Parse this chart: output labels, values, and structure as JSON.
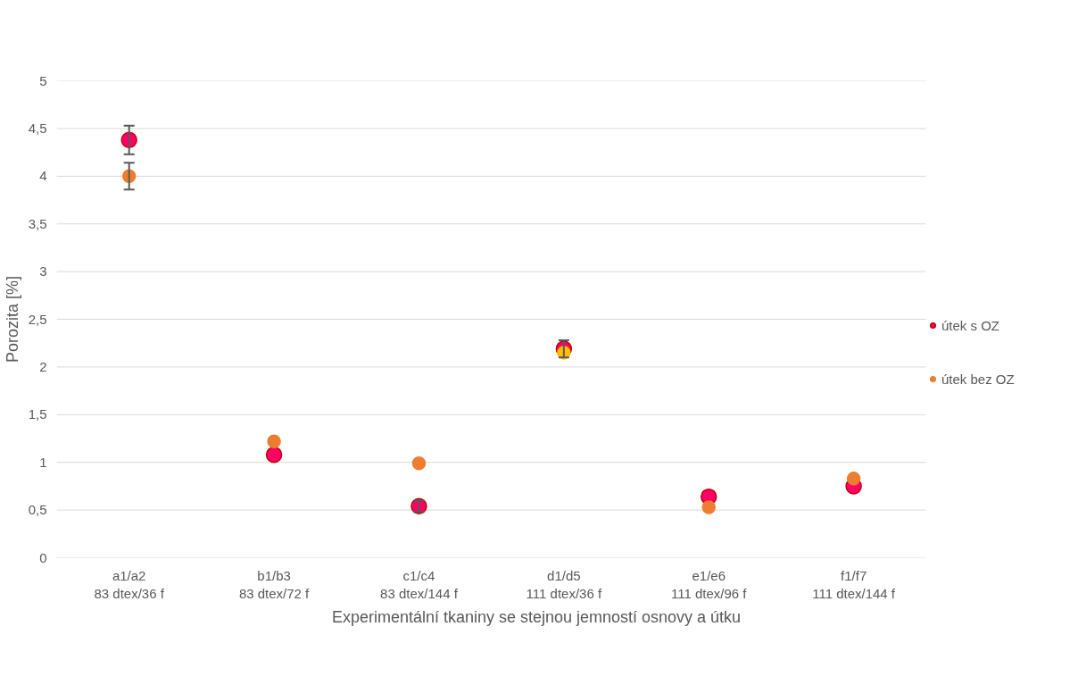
{
  "chart_data": {
    "type": "scatter",
    "xlabel": "Experimentální tkaniny se stejnou jemností osnovy a útku",
    "ylabel": "Porozita [%]",
    "categories": [
      "a1/a2\n83 dtex/36 f",
      "b1/b3\n83 dtex/72 f",
      "c1/c4\n83 dtex/144 f",
      "d1/d5\n111 dtex/36 f",
      "e1/e6\n111 dtex/96 f",
      "f1/f7\n111 dtex/144 f"
    ],
    "series": [
      {
        "name": "útek s OZ",
        "color": "#ff0066",
        "values": [
          4.38,
          1.08,
          0.54,
          2.19,
          0.64,
          0.75
        ],
        "errors": [
          0.15,
          null,
          0.06,
          0.09,
          null,
          null
        ]
      },
      {
        "name": "útek bez OZ",
        "color": "#ed7d31",
        "colors": [
          "#ed7d31",
          "#ed7d31",
          "#ed7d31",
          "#ffc000",
          "#ed7d31",
          "#ed7d31"
        ],
        "values": [
          4.0,
          1.22,
          0.99,
          2.15,
          0.53,
          0.83
        ],
        "errors": [
          0.14,
          null,
          null,
          null,
          null,
          null
        ]
      }
    ],
    "ylim": [
      0,
      5
    ],
    "yticks": [
      0,
      {
        "value": 0.5,
        "label": "0,5"
      },
      1,
      {
        "value": 1.5,
        "label": "1,5"
      },
      2,
      {
        "value": 2.5,
        "label": "2,5"
      },
      3,
      {
        "value": 3.5,
        "label": "3,5"
      },
      4,
      {
        "value": 4.5,
        "label": "4,5"
      },
      5
    ],
    "grid": "y",
    "legend": "right",
    "marker": "circle"
  }
}
